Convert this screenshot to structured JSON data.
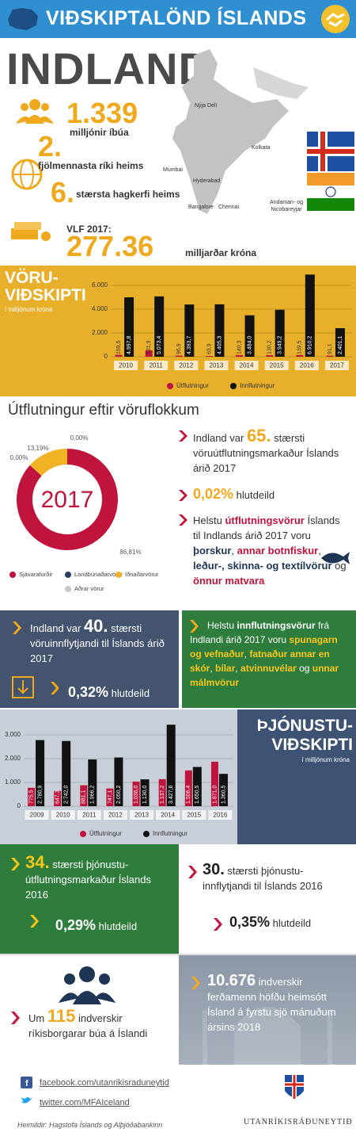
{
  "header": {
    "title": "VIÐSKIPTALÖND ÍSLANDS"
  },
  "country": "INDLAND",
  "facts": [
    {
      "value": "1.339",
      "label": "milljónir íbúa"
    },
    {
      "value": "2.",
      "label": "fjölmennasta ríki heims"
    },
    {
      "value": "6.",
      "label": "stærsta hagkerfi heims"
    },
    {
      "prefix": "VLF 2017:",
      "value": "277.36",
      "label": "milljarðar króna"
    }
  ],
  "map": {
    "cities": [
      "Nýja Delí",
      "Kolkata",
      "Mumbai",
      "Hyderabad",
      "Bangalore",
      "Chennai",
      "Andaman- og Nicobareyjar"
    ]
  },
  "chart_data": [
    {
      "type": "bar",
      "title": "VÖRU-VIÐSKIPTI",
      "subtitle": "í milljónum króna",
      "categories": [
        "2010",
        "2011",
        "2012",
        "2013",
        "2014",
        "2015",
        "2016",
        "2017"
      ],
      "series": [
        {
          "name": "Útflutningur",
          "color": "#c0143c",
          "values": [
            159.5,
            531.9,
            96.9,
            63.9,
            140.3,
            130.2,
            139.5,
            91.1
          ],
          "value_labels": [
            "159,5",
            "531,9",
            "96,9",
            "63,9",
            "140,3",
            "130,2",
            "139,5",
            "91,1"
          ]
        },
        {
          "name": "Innflutningur",
          "color": "#111111",
          "values": [
            4997.8,
            5073.4,
            4393.7,
            4405.3,
            3484.0,
            3949.2,
            6910.2,
            2401.1
          ],
          "value_labels": [
            "4.997,8",
            "5.073,4",
            "4.393,7",
            "4.405,3",
            "3.484,0",
            "3.949,2",
            "6.910,2",
            "2.401,1"
          ]
        }
      ],
      "ylim": [
        0,
        7000
      ],
      "yticks": [
        0,
        {
          "value": 2000,
          "label": "2.000"
        },
        {
          "value": 4000,
          "label": "4.000"
        },
        {
          "value": 6000,
          "label": "6.000"
        }
      ],
      "grid": true
    },
    {
      "type": "pie",
      "title": "Útflutningur eftir vöruflokkum",
      "center_label": "2017",
      "categories": [
        "Sjávarafurðir",
        "Landbúnaðarvörur",
        "Iðnaðarvörur",
        "Aðrar vörur"
      ],
      "values": [
        86.81,
        0.0,
        13.19,
        0.0
      ],
      "value_labels": [
        "86,81%",
        "0,00%",
        "13,19%",
        "0,00%"
      ],
      "colors": [
        "#c0143c",
        "#2a3f6a",
        "#f0b323",
        "#c8c8c8"
      ]
    },
    {
      "type": "bar",
      "title": "ÞJÓNUSTU-VIÐSKIPTI",
      "subtitle": "í milljónum króna",
      "categories": [
        "2009",
        "2010",
        "2011",
        "2012",
        "2013",
        "2014",
        "2015",
        "2016"
      ],
      "series": [
        {
          "name": "Útflutningur",
          "color": "#c0143c",
          "values": [
            775.5,
            647.3,
            881.1,
            747.1,
            1036.0,
            1137.2,
            1506.4,
            1871.0
          ],
          "value_labels": [
            "775,5",
            "647,3",
            "881,1",
            "747,1",
            "1.036,0",
            "1.137,2",
            "1.506,4",
            "1.871,0"
          ]
        },
        {
          "name": "Innflutningur",
          "color": "#111111",
          "values": [
            2780.9,
            2742.0,
            1966.2,
            2050.2,
            1130.0,
            3427.6,
            1650.5,
            1360.5
          ],
          "value_labels": [
            "2.780,9",
            "2.742,0",
            "1.966,2",
            "2.050,2",
            "1.130,0",
            "3.427,6",
            "1.650,5",
            "1.360,5"
          ]
        }
      ],
      "ylim": [
        0,
        3500
      ],
      "yticks": [
        0,
        {
          "value": 1000,
          "label": "1.000"
        },
        {
          "value": 2000,
          "label": "2.000"
        },
        {
          "value": 3000,
          "label": "3.000"
        }
      ],
      "grid": true
    }
  ],
  "export_goods": {
    "rank": [
      "Indland var ",
      "65.",
      " stærsti vöruútflutningsmarkaður Íslands árið 2017"
    ],
    "share": [
      "0,02%",
      " hlutdeild"
    ],
    "products": [
      "Helstu ",
      "útflutningsvörur",
      " Íslands til Indlands árið 2017 voru ",
      "þorskur",
      ", ",
      "annar botnfiskur",
      ", ",
      "leður-, skinna- og textílvörur",
      " og ",
      "önnur matvara"
    ]
  },
  "import_goods": {
    "rank": [
      "Indland var ",
      "40.",
      " stærsti vöruinnflytjandi til Íslands árið 2017"
    ],
    "share": [
      "0,32%",
      " hlutdeild"
    ],
    "products": [
      "Helstu ",
      "innflutningsvörur",
      " frá Indlandi árið 2017 voru ",
      "spunagarn og vefnaður",
      ", ",
      "fatnaður annar en skór",
      ", ",
      "bílar",
      ", ",
      "atvinnuvélar",
      " og ",
      "unnar málmvörur"
    ]
  },
  "services": {
    "export": {
      "rank": [
        "34.",
        " stærsti þjónustu-útflutningsmarkaður Íslands 2016"
      ],
      "share": [
        "0,29%",
        " hlutdeild"
      ]
    },
    "import": {
      "rank": [
        "30.",
        " stærsti þjónustu-innflytjandi til Íslands 2016"
      ],
      "share": [
        "0,35%",
        " hlutdeild"
      ]
    }
  },
  "people": {
    "residents": [
      "Um ",
      "115",
      " indverskir ríkisborgarar búa á Íslandi"
    ],
    "tourists": [
      "10.676",
      " indverskir ferðamenn höfðu heimsótt Ísland á fyrstu sjö mánuðum ársins 2018"
    ]
  },
  "footer": {
    "facebook": "facebook.com/utanrikisraduneytid",
    "twitter": "twitter.com/MFAIceland",
    "sources": "Heimildir: Hagstofa Íslands og Alþjóðabankinn",
    "ministry": "UTANRÍKISRÁÐUNEYTIÐ"
  }
}
